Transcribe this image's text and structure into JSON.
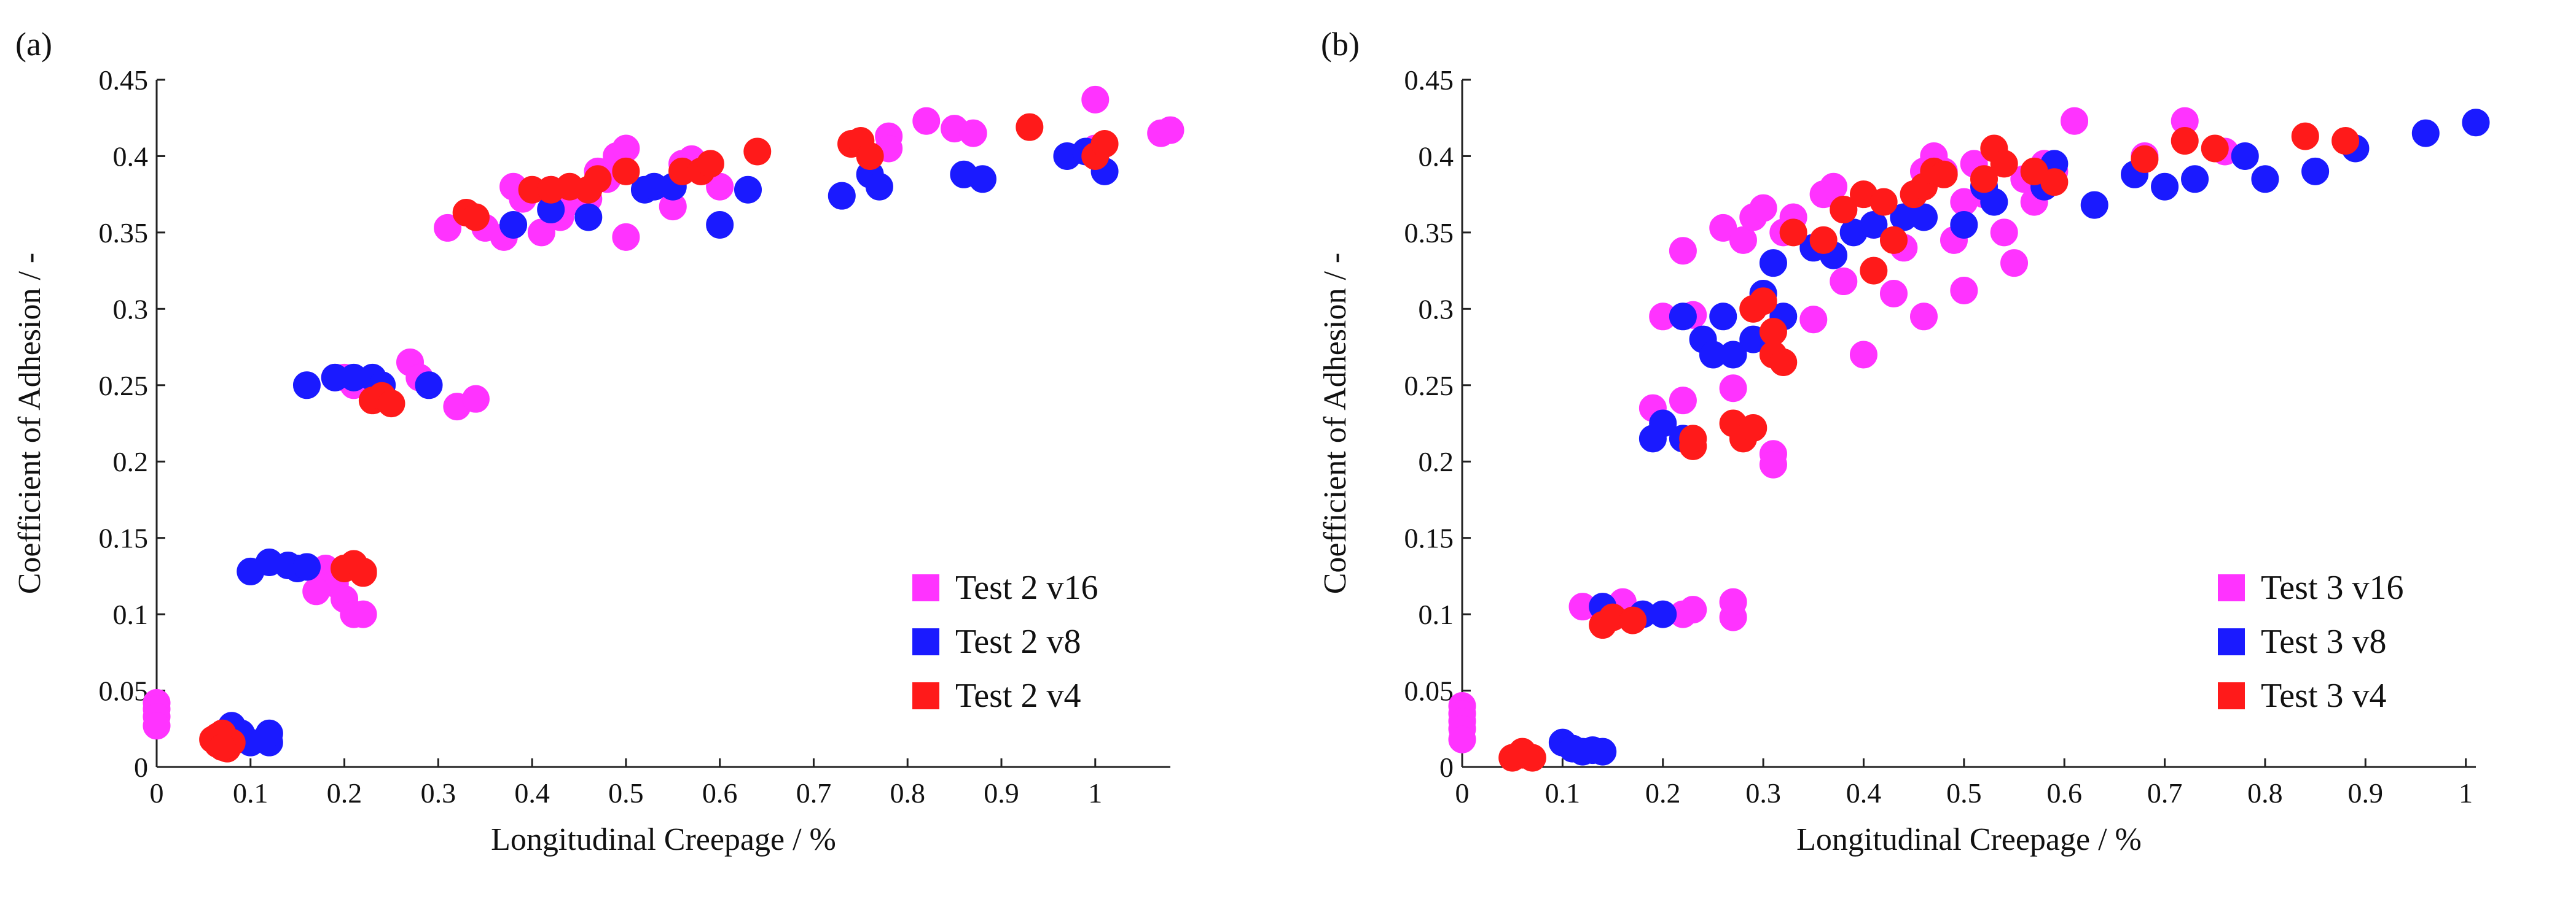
{
  "chart_data": [
    {
      "type": "scatter",
      "panel_label": "(a)",
      "xlabel": "Longitudinal Creepage / %",
      "ylabel": "Coefficient of Adhesion / -",
      "xlim": [
        0,
        1.08
      ],
      "ylim": [
        0,
        0.45
      ],
      "xticks": [
        0,
        0.1,
        0.2,
        0.3,
        0.4,
        0.5,
        0.6,
        0.7,
        0.8,
        0.9,
        1
      ],
      "xtick_labels": [
        "0",
        "0.1",
        "0.2",
        "0.3",
        "0.4",
        "0.5",
        "0.6",
        "0.7",
        "0.8",
        "0.9",
        "1"
      ],
      "yticks": [
        0,
        0.05,
        0.1,
        0.15,
        0.2,
        0.25,
        0.3,
        0.35,
        0.4,
        0.45
      ],
      "ytick_labels": [
        "0",
        "0.05",
        "0.1",
        "0.15",
        "0.2",
        "0.25",
        "0.3",
        "0.35",
        "0.4",
        "0.45"
      ],
      "legend_position": "bottom-right",
      "grid": false,
      "series": [
        {
          "name": "Test 2 v16",
          "color": "#ff33ff",
          "x": [
            0.0,
            0.0,
            0.0,
            0.0,
            0.18,
            0.19,
            0.2,
            0.21,
            0.22,
            0.17,
            0.19,
            0.2,
            0.21,
            0.27,
            0.28,
            0.32,
            0.34,
            0.31,
            0.35,
            0.37,
            0.38,
            0.39,
            0.41,
            0.42,
            0.43,
            0.44,
            0.46,
            0.47,
            0.48,
            0.49,
            0.5,
            0.5,
            0.55,
            0.56,
            0.57,
            0.58,
            0.6,
            0.78,
            0.78,
            0.82,
            0.85,
            0.87,
            1.0,
            1.0,
            1.07,
            1.08
          ],
          "y": [
            0.042,
            0.038,
            0.033,
            0.027,
            0.13,
            0.12,
            0.11,
            0.1,
            0.1,
            0.115,
            0.255,
            0.255,
            0.25,
            0.265,
            0.255,
            0.236,
            0.241,
            0.353,
            0.353,
            0.347,
            0.38,
            0.372,
            0.35,
            0.378,
            0.36,
            0.37,
            0.372,
            0.39,
            0.385,
            0.4,
            0.405,
            0.347,
            0.367,
            0.395,
            0.398,
            0.39,
            0.38,
            0.413,
            0.405,
            0.423,
            0.418,
            0.415,
            0.405,
            0.437,
            0.415,
            0.417
          ]
        },
        {
          "name": "Test 2 v8",
          "color": "#1a1aff",
          "x": [
            0.08,
            0.09,
            0.1,
            0.12,
            0.12,
            0.1,
            0.12,
            0.14,
            0.15,
            0.16,
            0.16,
            0.19,
            0.21,
            0.23,
            0.24,
            0.29,
            0.38,
            0.42,
            0.46,
            0.52,
            0.53,
            0.55,
            0.6,
            0.63,
            0.73,
            0.76,
            0.77,
            0.86,
            0.88,
            0.97,
            0.99,
            1.01
          ],
          "y": [
            0.027,
            0.022,
            0.016,
            0.016,
            0.022,
            0.128,
            0.134,
            0.132,
            0.13,
            0.131,
            0.25,
            0.255,
            0.255,
            0.255,
            0.25,
            0.25,
            0.355,
            0.365,
            0.36,
            0.378,
            0.38,
            0.38,
            0.355,
            0.378,
            0.374,
            0.388,
            0.38,
            0.388,
            0.385,
            0.4,
            0.403,
            0.39
          ]
        },
        {
          "name": "Test 2 v4",
          "color": "#ff1a1a",
          "x": [
            0.06,
            0.065,
            0.07,
            0.075,
            0.08,
            0.065,
            0.07,
            0.2,
            0.21,
            0.22,
            0.22,
            0.23,
            0.24,
            0.25,
            0.33,
            0.34,
            0.4,
            0.42,
            0.44,
            0.46,
            0.47,
            0.5,
            0.56,
            0.58,
            0.59,
            0.64,
            0.74,
            0.75,
            0.76,
            0.93,
            1.0,
            1.01
          ],
          "y": [
            0.018,
            0.015,
            0.022,
            0.012,
            0.016,
            0.02,
            0.013,
            0.13,
            0.133,
            0.127,
            0.128,
            0.24,
            0.243,
            0.238,
            0.363,
            0.36,
            0.378,
            0.378,
            0.38,
            0.378,
            0.385,
            0.39,
            0.39,
            0.39,
            0.395,
            0.403,
            0.408,
            0.41,
            0.4,
            0.419,
            0.4,
            0.408
          ]
        }
      ]
    },
    {
      "type": "scatter",
      "panel_label": "(b)",
      "xlabel": "Longitudinal Creepage / %",
      "ylabel": "Coefficient of Adhesion / -",
      "xlim": [
        0,
        1.01
      ],
      "ylim": [
        0,
        0.45
      ],
      "xticks": [
        0,
        0.1,
        0.2,
        0.3,
        0.4,
        0.5,
        0.6,
        0.7,
        0.8,
        0.9,
        1
      ],
      "xtick_labels": [
        "0",
        "0.1",
        "0.2",
        "0.3",
        "0.4",
        "0.5",
        "0.6",
        "0.7",
        "0.8",
        "0.9",
        "1"
      ],
      "yticks": [
        0,
        0.05,
        0.1,
        0.15,
        0.2,
        0.25,
        0.3,
        0.35,
        0.4,
        0.45
      ],
      "ytick_labels": [
        "0",
        "0.05",
        "0.1",
        "0.15",
        "0.2",
        "0.25",
        "0.3",
        "0.35",
        "0.4",
        "0.45"
      ],
      "legend_position": "bottom-right",
      "grid": false,
      "series": [
        {
          "name": "Test 3 v16",
          "color": "#ff33ff",
          "x": [
            0.0,
            0.0,
            0.0,
            0.0,
            0.0,
            0.12,
            0.16,
            0.22,
            0.23,
            0.27,
            0.27,
            0.19,
            0.2,
            0.22,
            0.22,
            0.23,
            0.26,
            0.27,
            0.28,
            0.29,
            0.3,
            0.31,
            0.31,
            0.32,
            0.33,
            0.35,
            0.36,
            0.37,
            0.38,
            0.38,
            0.4,
            0.41,
            0.43,
            0.44,
            0.45,
            0.46,
            0.46,
            0.47,
            0.48,
            0.49,
            0.5,
            0.5,
            0.51,
            0.52,
            0.54,
            0.55,
            0.56,
            0.57,
            0.58,
            0.58,
            0.59,
            0.61,
            0.68,
            0.72,
            0.76
          ],
          "y": [
            0.04,
            0.035,
            0.03,
            0.025,
            0.018,
            0.105,
            0.108,
            0.1,
            0.103,
            0.098,
            0.108,
            0.235,
            0.295,
            0.338,
            0.24,
            0.296,
            0.353,
            0.248,
            0.345,
            0.36,
            0.366,
            0.205,
            0.198,
            0.35,
            0.36,
            0.293,
            0.375,
            0.38,
            0.318,
            0.365,
            0.27,
            0.355,
            0.31,
            0.34,
            0.375,
            0.39,
            0.295,
            0.4,
            0.39,
            0.345,
            0.312,
            0.37,
            0.395,
            0.375,
            0.35,
            0.33,
            0.385,
            0.37,
            0.38,
            0.395,
            0.39,
            0.423,
            0.4,
            0.423,
            0.403
          ]
        },
        {
          "name": "Test 3 v8",
          "color": "#1a1aff",
          "x": [
            0.1,
            0.11,
            0.12,
            0.13,
            0.14,
            0.14,
            0.18,
            0.2,
            0.19,
            0.2,
            0.22,
            0.22,
            0.24,
            0.25,
            0.26,
            0.27,
            0.29,
            0.3,
            0.31,
            0.32,
            0.35,
            0.37,
            0.39,
            0.41,
            0.44,
            0.46,
            0.5,
            0.52,
            0.53,
            0.58,
            0.59,
            0.63,
            0.67,
            0.7,
            0.73,
            0.78,
            0.8,
            0.85,
            0.89,
            0.96,
            1.01
          ],
          "y": [
            0.016,
            0.012,
            0.01,
            0.011,
            0.01,
            0.105,
            0.1,
            0.1,
            0.215,
            0.225,
            0.215,
            0.295,
            0.28,
            0.27,
            0.295,
            0.27,
            0.28,
            0.31,
            0.33,
            0.295,
            0.34,
            0.335,
            0.35,
            0.355,
            0.36,
            0.36,
            0.355,
            0.38,
            0.37,
            0.38,
            0.395,
            0.368,
            0.388,
            0.38,
            0.385,
            0.4,
            0.385,
            0.39,
            0.405,
            0.415,
            0.422
          ]
        },
        {
          "name": "Test 3 v4",
          "color": "#ff1a1a",
          "x": [
            0.05,
            0.06,
            0.07,
            0.06,
            0.14,
            0.15,
            0.17,
            0.23,
            0.23,
            0.27,
            0.28,
            0.29,
            0.29,
            0.3,
            0.31,
            0.31,
            0.32,
            0.33,
            0.36,
            0.38,
            0.4,
            0.41,
            0.42,
            0.43,
            0.45,
            0.46,
            0.47,
            0.48,
            0.52,
            0.53,
            0.54,
            0.57,
            0.59,
            0.68,
            0.72,
            0.75,
            0.84,
            0.88
          ],
          "y": [
            0.006,
            0.01,
            0.006,
            0.008,
            0.093,
            0.098,
            0.096,
            0.21,
            0.215,
            0.225,
            0.215,
            0.222,
            0.3,
            0.305,
            0.285,
            0.27,
            0.265,
            0.35,
            0.345,
            0.365,
            0.375,
            0.325,
            0.37,
            0.345,
            0.375,
            0.38,
            0.39,
            0.388,
            0.385,
            0.405,
            0.395,
            0.39,
            0.383,
            0.398,
            0.41,
            0.405,
            0.413,
            0.41
          ]
        }
      ]
    }
  ]
}
